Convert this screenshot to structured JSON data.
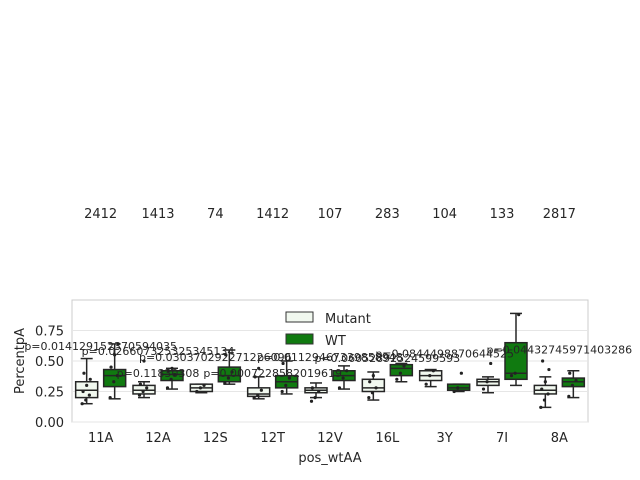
{
  "chart_data": {
    "type": "box",
    "xlabel": "pos_wtAA",
    "ylabel": "PercentpA",
    "ylim": [
      0,
      1.0
    ],
    "yticks": [
      "0.00",
      "0.25",
      "0.50",
      "0.75"
    ],
    "ytick_values": [
      0,
      0.25,
      0.5,
      0.75
    ],
    "categories": [
      "11A",
      "12A",
      "12S",
      "12T",
      "12V",
      "16L",
      "3Y",
      "7I",
      "8A"
    ],
    "grid": true,
    "legend_placement": "upper-center",
    "series": [
      {
        "name": "Mutant",
        "color": "#f1f8ef",
        "boxes": [
          {
            "whislo": 0.15,
            "q1": 0.2,
            "med": 0.26,
            "q3": 0.33,
            "whishi": 0.52
          },
          {
            "whislo": 0.2,
            "q1": 0.23,
            "med": 0.26,
            "q3": 0.3,
            "whishi": 0.33
          },
          {
            "whislo": 0.24,
            "q1": 0.25,
            "med": 0.28,
            "q3": 0.31,
            "whishi": 0.31
          },
          {
            "whislo": 0.19,
            "q1": 0.21,
            "med": 0.23,
            "q3": 0.28,
            "whishi": 0.37
          },
          {
            "whislo": 0.2,
            "q1": 0.24,
            "med": 0.26,
            "q3": 0.28,
            "whishi": 0.32
          },
          {
            "whislo": 0.18,
            "q1": 0.25,
            "med": 0.28,
            "q3": 0.35,
            "whishi": 0.41
          },
          {
            "whislo": 0.29,
            "q1": 0.34,
            "med": 0.38,
            "q3": 0.42,
            "whishi": 0.43
          },
          {
            "whislo": 0.24,
            "q1": 0.3,
            "med": 0.33,
            "q3": 0.35,
            "whishi": 0.37
          },
          {
            "whislo": 0.12,
            "q1": 0.23,
            "med": 0.26,
            "q3": 0.3,
            "whishi": 0.37
          }
        ],
        "counts": [
          "24",
          "14",
          "7",
          "14",
          "10",
          "28",
          "10",
          "13",
          "28"
        ]
      },
      {
        "name": "WT",
        "color": "#107a10",
        "boxes": [
          {
            "whislo": 0.19,
            "q1": 0.29,
            "med": 0.38,
            "q3": 0.43,
            "whishi": 0.64
          },
          {
            "whislo": 0.27,
            "q1": 0.34,
            "med": 0.39,
            "q3": 0.42,
            "whishi": 0.44
          },
          {
            "whislo": 0.31,
            "q1": 0.33,
            "med": 0.38,
            "q3": 0.45,
            "whishi": 0.59
          },
          {
            "whislo": 0.23,
            "q1": 0.28,
            "med": 0.33,
            "q3": 0.38,
            "whishi": 0.5
          },
          {
            "whislo": 0.27,
            "q1": 0.34,
            "med": 0.38,
            "q3": 0.42,
            "whishi": 0.46
          },
          {
            "whislo": 0.33,
            "q1": 0.38,
            "med": 0.44,
            "q3": 0.47,
            "whishi": 0.48
          },
          {
            "whislo": 0.25,
            "q1": 0.26,
            "med": 0.28,
            "q3": 0.31,
            "whishi": 0.31
          },
          {
            "whislo": 0.3,
            "q1": 0.35,
            "med": 0.4,
            "q3": 0.65,
            "whishi": 0.89
          },
          {
            "whislo": 0.2,
            "q1": 0.29,
            "med": 0.33,
            "q3": 0.36,
            "whishi": 0.42
          }
        ],
        "counts": [
          "12",
          "13",
          "4",
          "12",
          "7",
          "3",
          "4",
          "3",
          "17"
        ]
      }
    ],
    "points": [
      [
        [
          0.15,
          0.18,
          0.22,
          0.25,
          0.3,
          0.35,
          0.4
        ],
        [
          0.2,
          0.33,
          0.38,
          0.45,
          0.55,
          0.64
        ]
      ],
      [
        [
          0.22,
          0.25,
          0.28,
          0.31,
          0.5
        ],
        [
          0.28,
          0.35,
          0.39,
          0.42,
          0.44
        ]
      ],
      [
        [
          0.25,
          0.28,
          0.3
        ],
        [
          0.32,
          0.36,
          0.41,
          0.55
        ]
      ],
      [
        [
          0.2,
          0.22,
          0.26,
          0.37,
          0.44
        ],
        [
          0.25,
          0.3,
          0.36,
          0.48
        ]
      ],
      [
        [
          0.17,
          0.2,
          0.25,
          0.28
        ],
        [
          0.28,
          0.36,
          0.42
        ]
      ],
      [
        [
          0.2,
          0.24,
          0.28,
          0.33,
          0.38
        ],
        [
          0.35,
          0.4,
          0.46
        ]
      ],
      [
        [
          0.31,
          0.38,
          0.42
        ],
        [
          0.25,
          0.28,
          0.4
        ]
      ],
      [
        [
          0.27,
          0.33,
          0.48
        ],
        [
          0.38,
          0.4,
          0.88
        ]
      ],
      [
        [
          0.12,
          0.18,
          0.23,
          0.27,
          0.33,
          0.43,
          0.5
        ],
        [
          0.21,
          0.3,
          0.34,
          0.4
        ]
      ]
    ],
    "annotations": [
      {
        "text": "p=0.014129152370594035",
        "cat": 0,
        "y": 0.59
      },
      {
        "text": "p=0.026607325325345134",
        "cat": 1,
        "y": 0.55
      },
      {
        "text": "p=0.030370292271226096",
        "cat": 2,
        "y": 0.5
      },
      {
        "text": "p=0.11830308",
        "cat": 1,
        "y": 0.37
      },
      {
        "text": "p=0.0007228582019619",
        "cat": 3,
        "y": 0.37
      },
      {
        "text": "p=0.01129467339858948",
        "cat": 4,
        "y": 0.5
      },
      {
        "text": "p=0.06052892524599593",
        "cat": 5,
        "y": 0.49
      },
      {
        "text": "p=0.0844498870644525",
        "cat": 6,
        "y": 0.53
      },
      {
        "text": "p=0.04432745971403286",
        "cat": 8,
        "y": 0.56
      }
    ]
  }
}
